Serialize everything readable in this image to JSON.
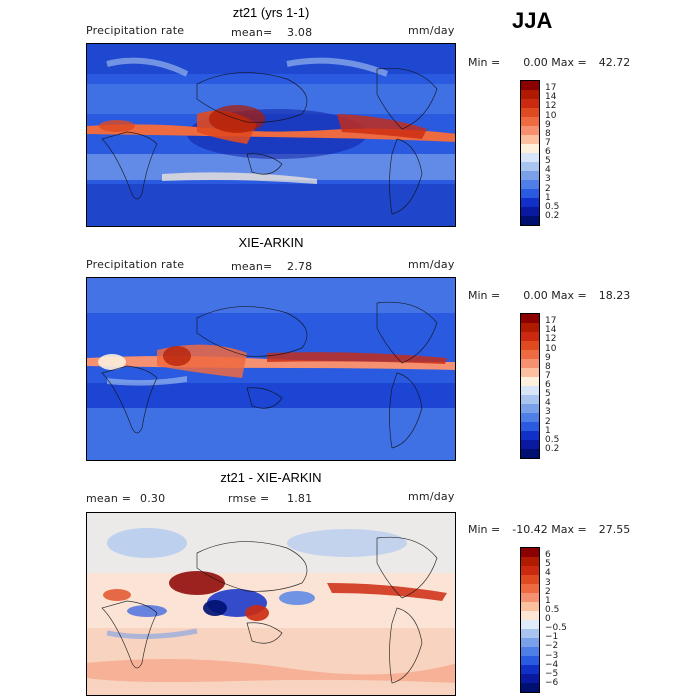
{
  "season": "JJA",
  "panels": [
    {
      "title": "zt21 (yrs 1-1)",
      "variable": "Precipitation rate",
      "stat1_label": "mean=",
      "stat1_value": "3.08",
      "stat2_label": "",
      "stat2_value": "",
      "units": "mm/day",
      "min_label": "Min =",
      "min_value": "0.00",
      "max_label": "Max =",
      "max_value": "42.72",
      "colorbar_labels": [
        "17",
        "14",
        "12",
        "10",
        "9",
        "8",
        "7",
        "6",
        "5",
        "4",
        "3",
        "2",
        "1",
        "0.5",
        "0.2"
      ],
      "colorbar_colors": [
        "#8b0000",
        "#b01a00",
        "#cc2a10",
        "#e04a20",
        "#ee6a40",
        "#f59070",
        "#fbc0a0",
        "#fdf0dc",
        "#d8e4f8",
        "#aac4f0",
        "#7aa0ea",
        "#4f7ee6",
        "#2a5ae0",
        "#1030c8",
        "#0a1aa0",
        "#001070"
      ]
    },
    {
      "title": "XIE-ARKIN",
      "variable": "Precipitation rate",
      "stat1_label": "mean=",
      "stat1_value": "2.78",
      "stat2_label": "",
      "stat2_value": "",
      "units": "mm/day",
      "min_label": "Min =",
      "min_value": "0.00",
      "max_label": "Max =",
      "max_value": "18.23",
      "colorbar_labels": [
        "17",
        "14",
        "12",
        "10",
        "9",
        "8",
        "7",
        "6",
        "5",
        "4",
        "3",
        "2",
        "1",
        "0.5",
        "0.2"
      ],
      "colorbar_colors": [
        "#8b0000",
        "#b01a00",
        "#cc2a10",
        "#e04a20",
        "#ee6a40",
        "#f59070",
        "#fbc0a0",
        "#fdf0dc",
        "#d8e4f8",
        "#aac4f0",
        "#7aa0ea",
        "#4f7ee6",
        "#2a5ae0",
        "#1030c8",
        "#0a1aa0",
        "#001070"
      ]
    },
    {
      "title": "zt21 - XIE-ARKIN",
      "variable": "",
      "stat1_label": "mean =",
      "stat1_value": "0.30",
      "stat2_label": "rmse =",
      "stat2_value": "1.81",
      "units": "mm/day",
      "min_label": "Min =",
      "min_value": "-10.42",
      "max_label": "Max =",
      "max_value": "27.55",
      "colorbar_labels": [
        "6",
        "5",
        "4",
        "3",
        "2",
        "1",
        "0.5",
        "0",
        "−0.5",
        "−1",
        "−2",
        "−3",
        "−4",
        "−5",
        "−6"
      ],
      "colorbar_colors": [
        "#8b0000",
        "#b01a00",
        "#cc2a10",
        "#e04a20",
        "#ee6a40",
        "#f59070",
        "#fbc0a0",
        "#fde6d6",
        "#e0ecfa",
        "#aac4f0",
        "#7aa0ea",
        "#4f7ee6",
        "#2a5ae0",
        "#1030c8",
        "#0a1aa0",
        "#001070"
      ]
    }
  ]
}
